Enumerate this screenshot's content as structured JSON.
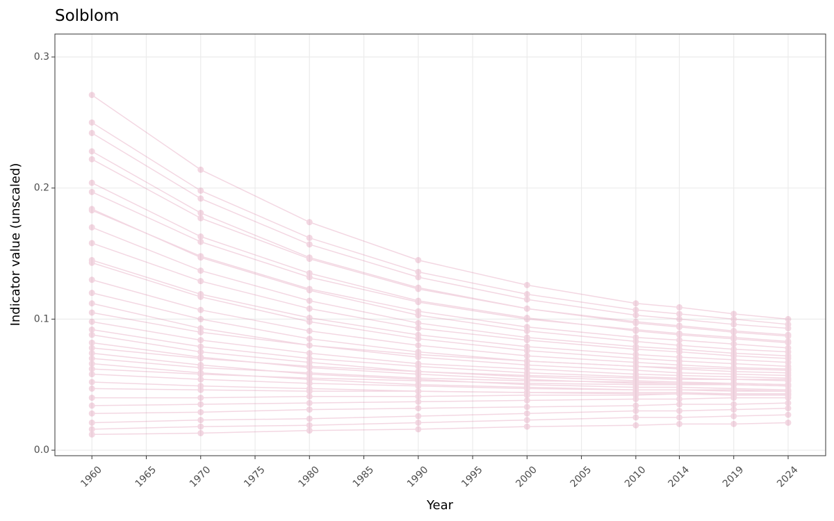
{
  "chart_data": {
    "type": "line",
    "title": "Solblom",
    "x_label": "Year",
    "y_label": "Indicator value (unscaled)",
    "color": "#d6729a",
    "grid": true,
    "x": [
      1960,
      1970,
      1980,
      1990,
      2000,
      2010,
      2014,
      2019,
      2024
    ],
    "xlim": [
      1956.6,
      2027.45
    ],
    "xticks": [
      1960,
      1965,
      1970,
      1975,
      1980,
      1985,
      1990,
      1995,
      2000,
      2005,
      2010,
      2014,
      2019,
      2024
    ],
    "ylim": [
      -0.0042,
      0.3175
    ],
    "yticks": [
      {
        "value": 0,
        "label": "0.0"
      },
      0.1,
      0.2,
      0.3
    ],
    "series": [
      {
        "values": [
          0.271,
          0.214,
          0.174,
          0.145,
          0.126,
          0.112,
          0.109,
          0.104,
          0.1
        ]
      },
      {
        "values": [
          0.25,
          0.198,
          0.162,
          0.136,
          0.119,
          0.107,
          0.104,
          0.1,
          0.096
        ]
      },
      {
        "values": [
          0.242,
          0.192,
          0.157,
          0.132,
          0.115,
          0.103,
          0.1,
          0.096,
          0.093
        ]
      },
      {
        "values": [
          0.228,
          0.181,
          0.147,
          0.124,
          0.108,
          0.097,
          0.094,
          0.09,
          0.087
        ]
      },
      {
        "values": [
          0.222,
          0.177,
          0.146,
          0.123,
          0.108,
          0.098,
          0.095,
          0.091,
          0.088
        ]
      },
      {
        "values": [
          0.204,
          0.163,
          0.135,
          0.114,
          0.101,
          0.091,
          0.088,
          0.085,
          0.082
        ]
      },
      {
        "values": [
          0.197,
          0.159,
          0.132,
          0.113,
          0.1,
          0.092,
          0.089,
          0.086,
          0.083
        ]
      },
      {
        "values": [
          0.184,
          0.147,
          0.122,
          0.103,
          0.091,
          0.083,
          0.08,
          0.077,
          0.075
        ]
      },
      {
        "values": [
          0.183,
          0.148,
          0.123,
          0.106,
          0.094,
          0.086,
          0.084,
          0.081,
          0.078
        ]
      },
      {
        "values": [
          0.17,
          0.137,
          0.114,
          0.097,
          0.086,
          0.079,
          0.077,
          0.074,
          0.072
        ]
      },
      {
        "values": [
          0.158,
          0.129,
          0.108,
          0.093,
          0.084,
          0.077,
          0.075,
          0.072,
          0.07
        ]
      },
      {
        "values": [
          0.145,
          0.119,
          0.101,
          0.088,
          0.079,
          0.073,
          0.071,
          0.069,
          0.067
        ]
      },
      {
        "values": [
          0.143,
          0.117,
          0.098,
          0.085,
          0.076,
          0.07,
          0.068,
          0.066,
          0.064
        ]
      },
      {
        "values": [
          0.13,
          0.107,
          0.091,
          0.08,
          0.072,
          0.067,
          0.065,
          0.063,
          0.062
        ]
      },
      {
        "values": [
          0.12,
          0.1,
          0.085,
          0.075,
          0.068,
          0.064,
          0.062,
          0.06,
          0.059
        ]
      },
      {
        "values": [
          0.112,
          0.093,
          0.08,
          0.071,
          0.065,
          0.061,
          0.059,
          0.058,
          0.057
        ]
      },
      {
        "values": [
          0.105,
          0.09,
          0.08,
          0.073,
          0.068,
          0.064,
          0.063,
          0.062,
          0.061
        ]
      },
      {
        "values": [
          0.098,
          0.084,
          0.074,
          0.066,
          0.062,
          0.058,
          0.057,
          0.056,
          0.055
        ]
      },
      {
        "values": [
          0.092,
          0.079,
          0.07,
          0.064,
          0.059,
          0.056,
          0.055,
          0.054,
          0.054
        ]
      },
      {
        "values": [
          0.088,
          0.075,
          0.067,
          0.06,
          0.056,
          0.053,
          0.052,
          0.051,
          0.05
        ]
      },
      {
        "values": [
          0.082,
          0.071,
          0.063,
          0.058,
          0.054,
          0.051,
          0.051,
          0.05,
          0.049
        ]
      },
      {
        "values": [
          0.078,
          0.07,
          0.064,
          0.06,
          0.057,
          0.055,
          0.054,
          0.054,
          0.053
        ]
      },
      {
        "values": [
          0.074,
          0.065,
          0.058,
          0.054,
          0.05,
          0.048,
          0.048,
          0.047,
          0.046
        ]
      },
      {
        "values": [
          0.07,
          0.063,
          0.059,
          0.055,
          0.053,
          0.052,
          0.051,
          0.051,
          0.05
        ]
      },
      {
        "values": [
          0.066,
          0.059,
          0.054,
          0.05,
          0.048,
          0.046,
          0.046,
          0.045,
          0.045
        ]
      },
      {
        "values": [
          0.062,
          0.058,
          0.055,
          0.053,
          0.051,
          0.05,
          0.05,
          0.05,
          0.049
        ]
      },
      {
        "values": [
          0.058,
          0.054,
          0.051,
          0.049,
          0.047,
          0.046,
          0.046,
          0.046,
          0.045
        ]
      },
      {
        "values": [
          0.052,
          0.049,
          0.047,
          0.045,
          0.044,
          0.044,
          0.044,
          0.043,
          0.043
        ]
      },
      {
        "values": [
          0.047,
          0.046,
          0.045,
          0.045,
          0.044,
          0.043,
          0.043,
          0.042,
          0.042
        ]
      },
      {
        "values": [
          0.04,
          0.04,
          0.041,
          0.041,
          0.042,
          0.042,
          0.043,
          0.043,
          0.043
        ]
      },
      {
        "values": [
          0.034,
          0.035,
          0.036,
          0.037,
          0.038,
          0.039,
          0.039,
          0.04,
          0.04
        ]
      },
      {
        "values": [
          0.028,
          0.029,
          0.031,
          0.032,
          0.033,
          0.034,
          0.035,
          0.035,
          0.036
        ]
      },
      {
        "values": [
          0.021,
          0.023,
          0.024,
          0.026,
          0.028,
          0.03,
          0.03,
          0.031,
          0.032
        ]
      },
      {
        "values": [
          0.016,
          0.018,
          0.019,
          0.021,
          0.023,
          0.025,
          0.025,
          0.026,
          0.027
        ]
      },
      {
        "values": [
          0.012,
          0.013,
          0.015,
          0.016,
          0.018,
          0.019,
          0.02,
          0.02,
          0.021
        ]
      }
    ]
  }
}
